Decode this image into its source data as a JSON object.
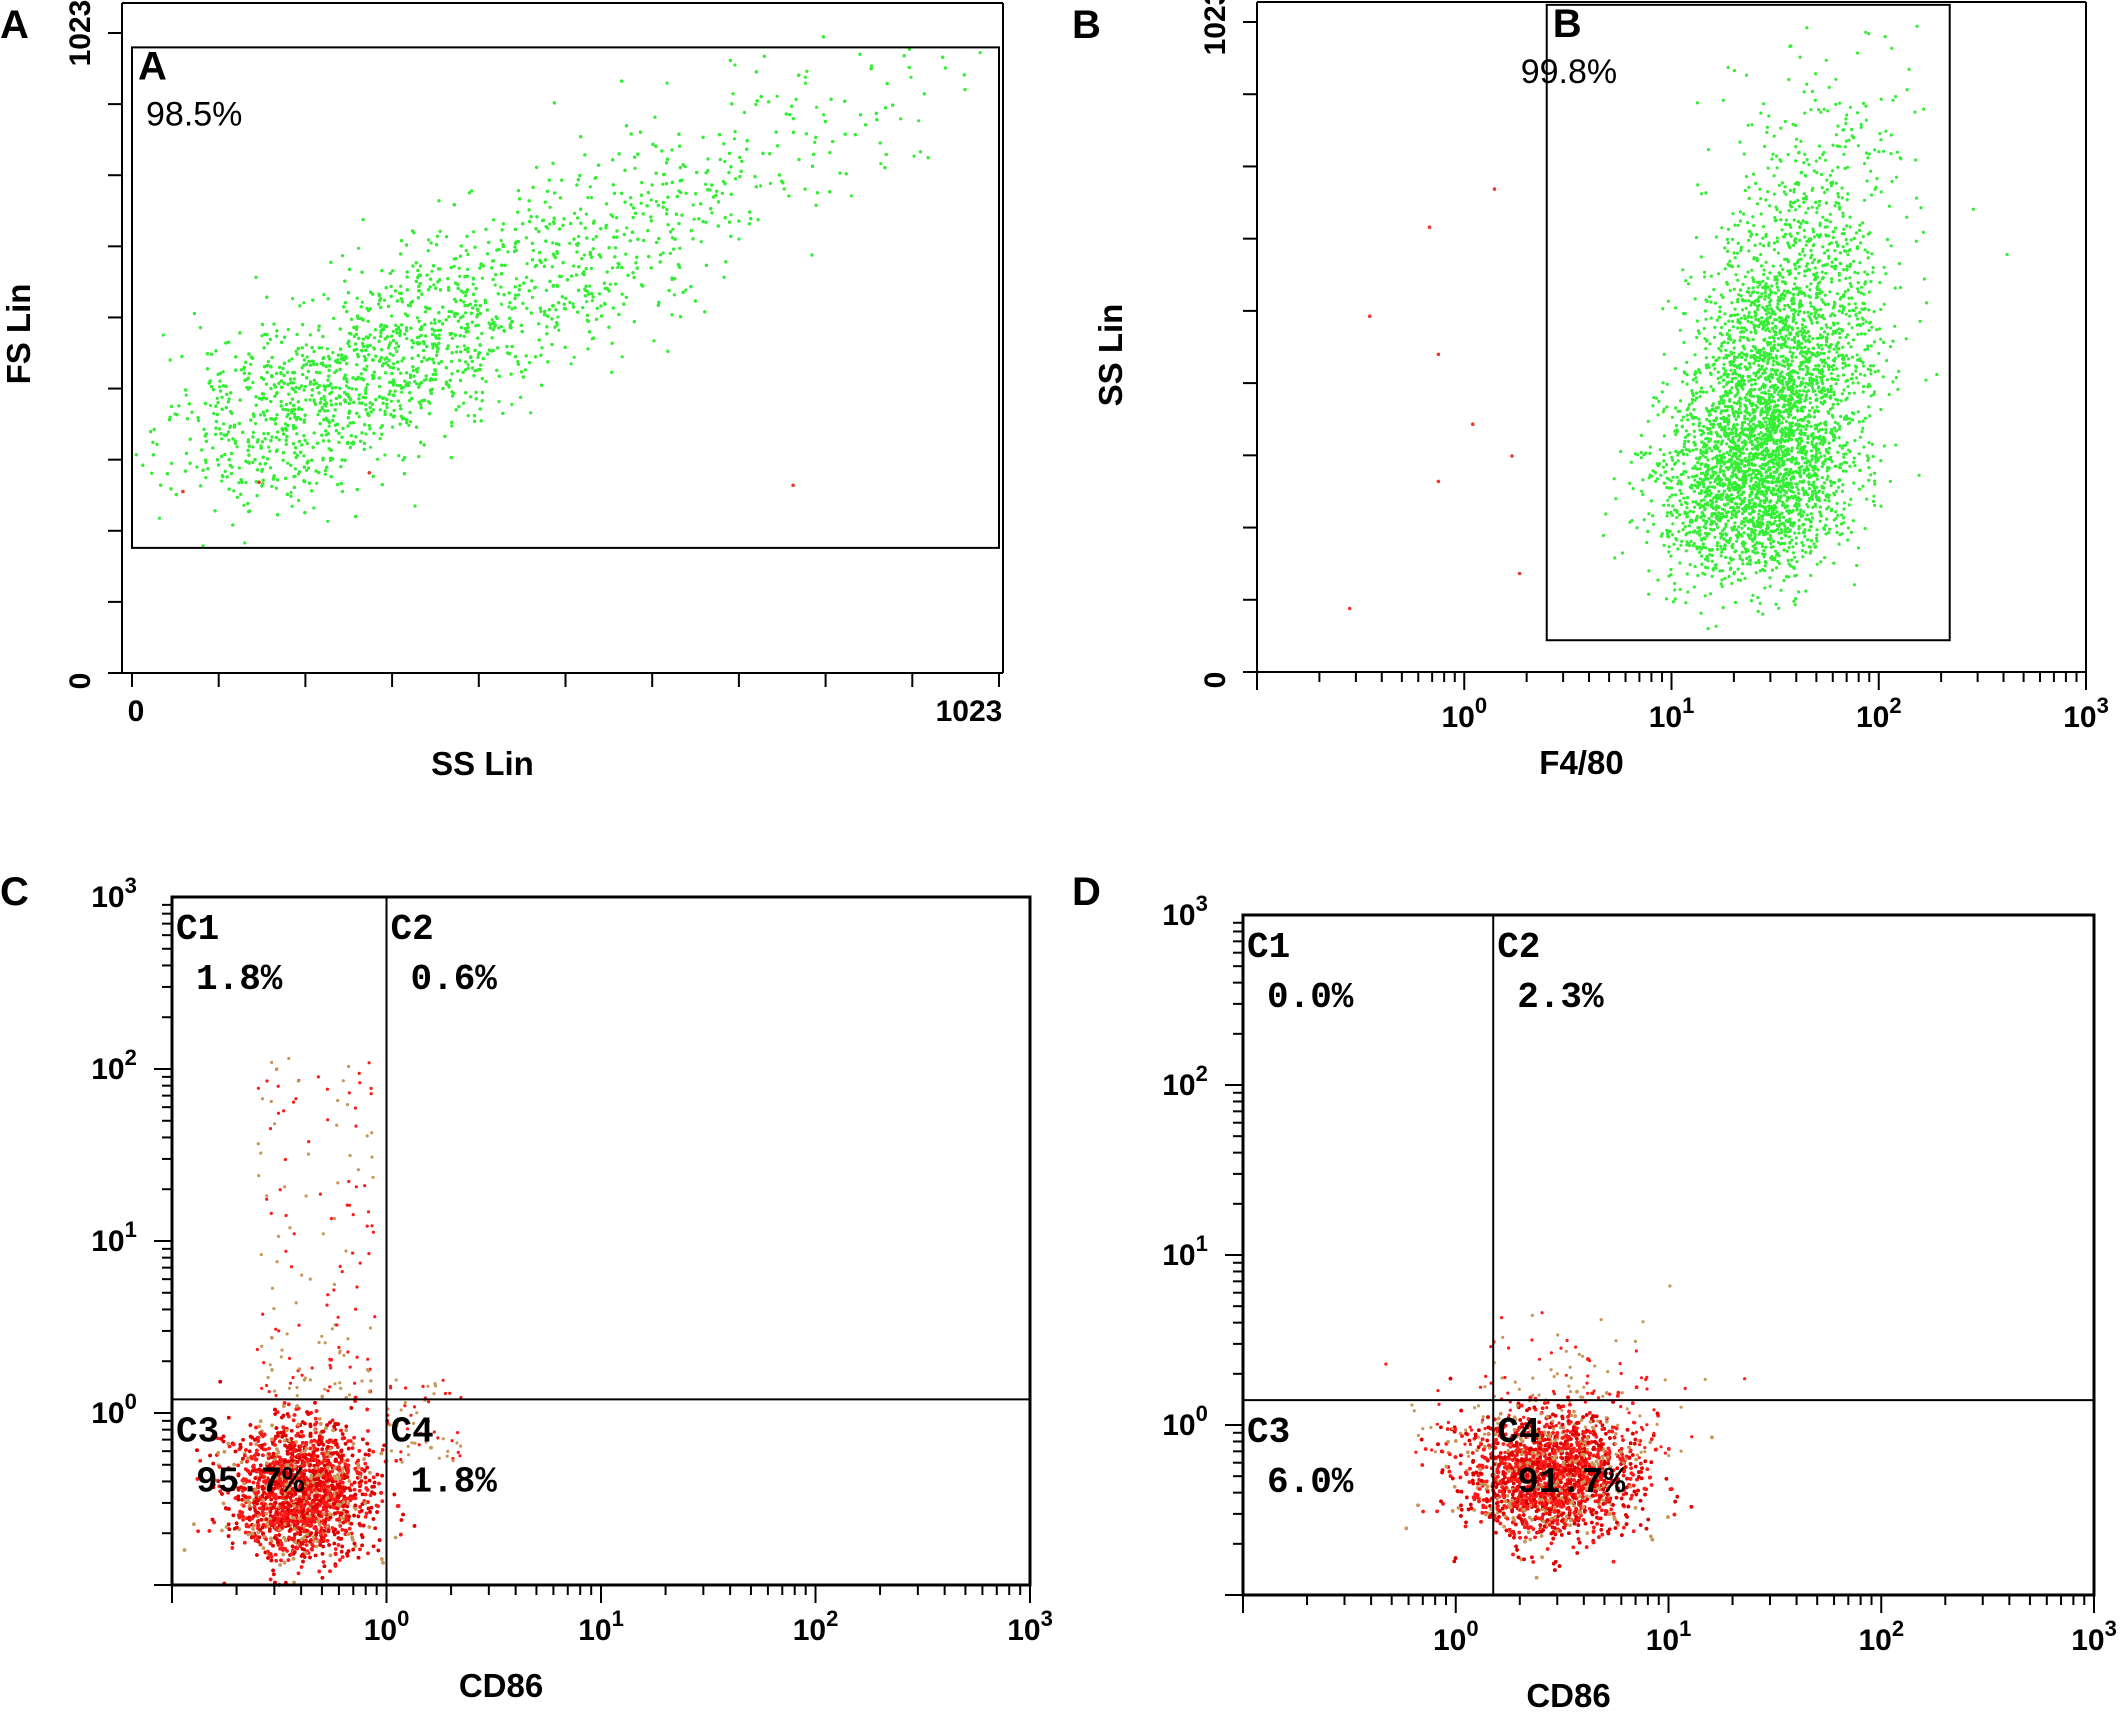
{
  "panel_letters": [
    "A",
    "B",
    "C",
    "D"
  ],
  "point_colors": {
    "main": "#33ee33",
    "outlier": "#e83a2e",
    "red": "#ff1a1a",
    "tan": "#c9975a",
    "dark": "#e00000"
  },
  "chart_data": [
    {
      "id": "A",
      "type": "scatter",
      "xlabel": "SS Lin",
      "ylabel": "FS Lin",
      "xscale": "linear",
      "yscale": "linear",
      "xlim": [
        0,
        1023
      ],
      "ylim": [
        0,
        1023
      ],
      "x_ticklabels": [
        "0",
        "1023"
      ],
      "y_ticklabels": [
        "0",
        "1023"
      ],
      "gate": {
        "label": "A",
        "percent": "98.5%",
        "x": [
          0,
          1023
        ],
        "y": [
          200,
          1000
        ]
      },
      "population": {
        "description": "approx. 5000 events, dense cluster",
        "center_x": 200,
        "center_y": 380,
        "spread": "diagonal upward tail to x~1000, y~900"
      }
    },
    {
      "id": "B",
      "type": "scatter",
      "xlabel": "F4/80",
      "ylabel": "SS Lin",
      "xscale": "log",
      "yscale": "linear",
      "xlim": [
        0.1,
        1000
      ],
      "ylim": [
        0,
        1023
      ],
      "x_ticklabels": [
        {
          "base": "10",
          "exp": "0"
        },
        {
          "base": "10",
          "exp": "1"
        },
        {
          "base": "10",
          "exp": "2"
        },
        {
          "base": "10",
          "exp": "3"
        }
      ],
      "y_ticklabels": [
        "0",
        "1023"
      ],
      "gate": {
        "label": "B",
        "percent": "99.8%",
        "x": [
          2.5,
          220
        ],
        "y": [
          50,
          1050
        ]
      },
      "population": {
        "description": "approx. 5000 events",
        "center_x": 22,
        "center_y": 230,
        "spread": "upward tail to y~900"
      }
    },
    {
      "id": "C",
      "type": "scatter",
      "xlabel": "CD86",
      "ylabel": "",
      "xscale": "log",
      "yscale": "log",
      "xlim": [
        0.1,
        1000
      ],
      "ylim": [
        0.1,
        1000
      ],
      "x_ticklabels": [
        {
          "base": "10",
          "exp": "0"
        },
        {
          "base": "10",
          "exp": "1"
        },
        {
          "base": "10",
          "exp": "2"
        },
        {
          "base": "10",
          "exp": "3"
        }
      ],
      "y_ticklabels": [
        {
          "base": "10",
          "exp": "0"
        },
        {
          "base": "10",
          "exp": "1"
        },
        {
          "base": "10",
          "exp": "2"
        },
        {
          "base": "10",
          "exp": "3"
        }
      ],
      "quadrant_x": 1.0,
      "quadrant_y": 1.2,
      "quadrants": [
        {
          "label": "C1",
          "percent": "1.8%"
        },
        {
          "label": "C2",
          "percent": "0.6%"
        },
        {
          "label": "C3",
          "percent": "95.7%"
        },
        {
          "label": "C4",
          "percent": "1.8%"
        }
      ],
      "population": {
        "description": "dense red cluster",
        "center_x": 0.4,
        "center_y": 0.35
      }
    },
    {
      "id": "D",
      "type": "scatter",
      "xlabel": "CD86",
      "ylabel": "",
      "xscale": "log",
      "yscale": "log",
      "xlim": [
        0.1,
        1000
      ],
      "ylim": [
        0.1,
        1000
      ],
      "x_ticklabels": [
        {
          "base": "10",
          "exp": "0"
        },
        {
          "base": "10",
          "exp": "1"
        },
        {
          "base": "10",
          "exp": "2"
        },
        {
          "base": "10",
          "exp": "3"
        }
      ],
      "y_ticklabels": [
        {
          "base": "10",
          "exp": "0"
        },
        {
          "base": "10",
          "exp": "1"
        },
        {
          "base": "10",
          "exp": "2"
        },
        {
          "base": "10",
          "exp": "3"
        }
      ],
      "quadrant_x": 1.5,
      "quadrant_y": 1.4,
      "quadrants": [
        {
          "label": "C1",
          "percent": "0.0%"
        },
        {
          "label": "C2",
          "percent": "2.3%"
        },
        {
          "label": "C3",
          "percent": "6.0%"
        },
        {
          "label": "C4",
          "percent": "91.7%"
        }
      ],
      "population": {
        "description": "dense red cluster",
        "center_x": 2.8,
        "center_y": 0.5
      }
    }
  ]
}
